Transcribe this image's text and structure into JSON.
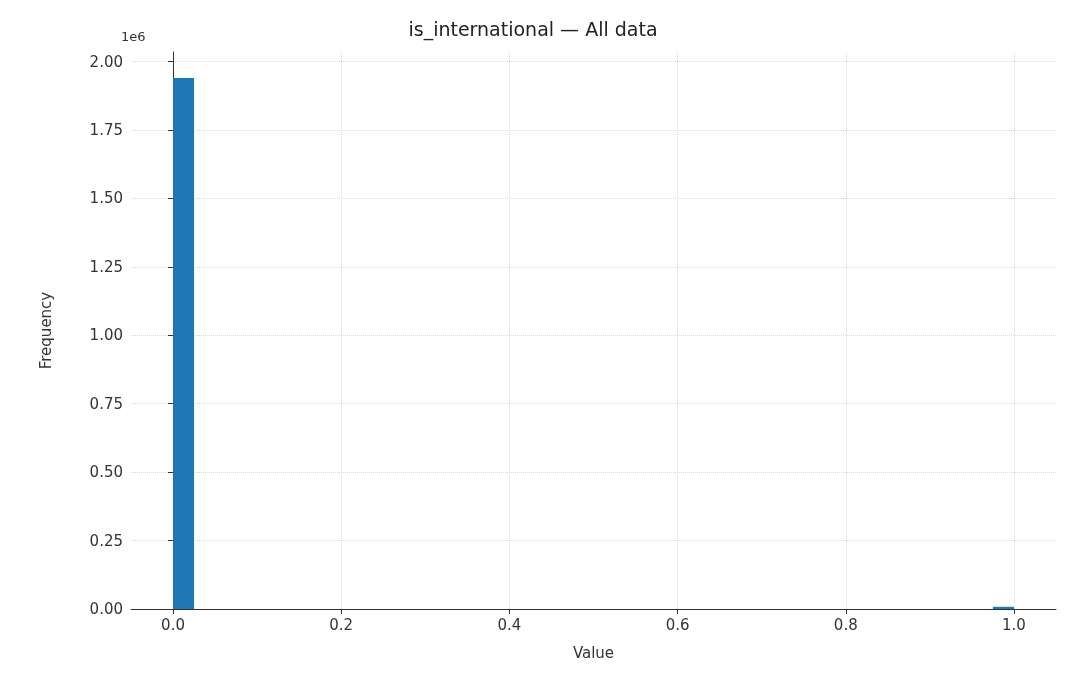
{
  "chart_data": {
    "type": "histogram",
    "title": "is_international — All data",
    "xlabel": "Value",
    "ylabel": "Frequency",
    "annotations": [
      "1e6"
    ],
    "color": "#1f77b4",
    "bins": [
      0,
      0.025,
      0.05,
      0.075,
      0.1,
      0.125,
      0.15,
      0.175,
      0.2,
      0.225,
      0.25,
      0.275,
      0.3,
      0.325,
      0.35,
      0.375,
      0.4,
      0.425,
      0.45,
      0.475,
      0.5,
      0.525,
      0.55,
      0.575,
      0.6,
      0.625,
      0.65,
      0.675,
      0.7,
      0.725,
      0.75,
      0.775,
      0.8,
      0.825,
      0.85,
      0.875,
      0.9,
      0.925,
      0.95,
      0.975,
      1
    ],
    "values": [
      1.94,
      0,
      0,
      0,
      0,
      0,
      0,
      0,
      0,
      0,
      0,
      0,
      0,
      0,
      0,
      0,
      0,
      0,
      0,
      0,
      0,
      0,
      0,
      0,
      0,
      0,
      0,
      0,
      0,
      0,
      0,
      0,
      0,
      0,
      0,
      0,
      0,
      0,
      0,
      0.008
    ],
    "xlim": [
      -0.05,
      1.05
    ],
    "xticks": [
      {
        "value": 0,
        "label": "0.0"
      },
      {
        "value": 0.2,
        "label": "0.2"
      },
      {
        "value": 0.4,
        "label": "0.4"
      },
      {
        "value": 0.6,
        "label": "0.6"
      },
      {
        "value": 0.8,
        "label": "0.8"
      },
      {
        "value": 1,
        "label": "1.0"
      }
    ],
    "ylim": [
      0,
      2.035
    ],
    "yticks": [
      {
        "value": 0,
        "label": "0.00"
      },
      0.25,
      {
        "value": 0.5,
        "label": "0.50"
      },
      0.75,
      {
        "value": 1,
        "label": "1.00"
      },
      1.25,
      {
        "value": 1.5,
        "label": "1.50"
      },
      1.75,
      {
        "value": 2,
        "label": "2.00"
      }
    ],
    "grid": true
  }
}
